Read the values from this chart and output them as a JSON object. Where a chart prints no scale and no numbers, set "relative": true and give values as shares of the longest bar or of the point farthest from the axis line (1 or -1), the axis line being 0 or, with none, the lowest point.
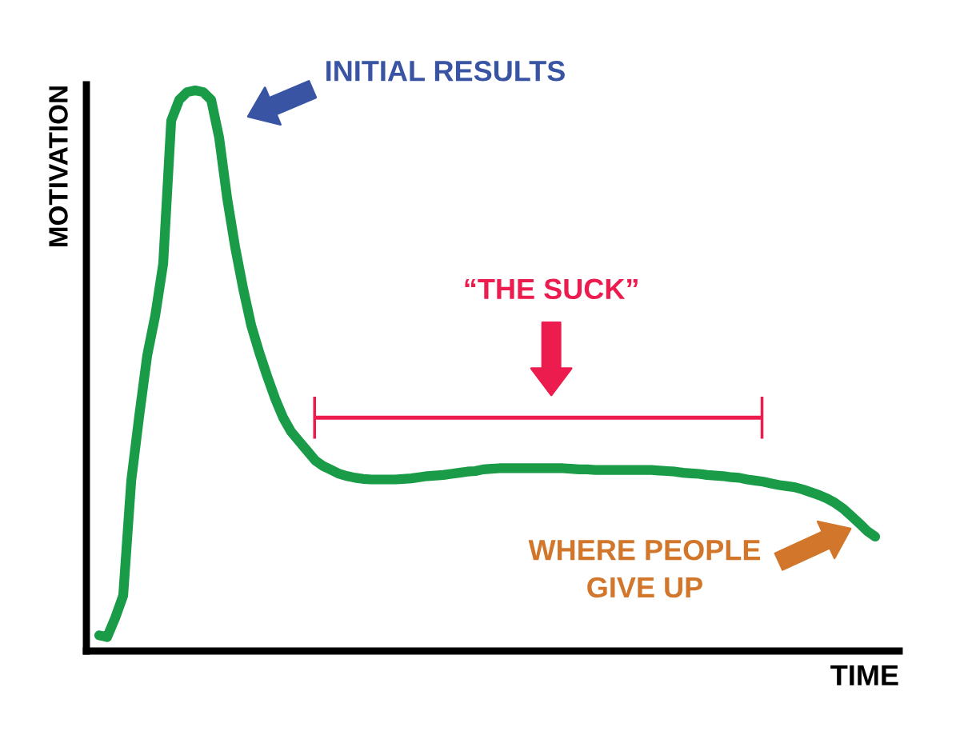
{
  "chart_data": {
    "type": "line",
    "relative": true,
    "xlabel": "TIME",
    "ylabel": "MOTIVATION",
    "tick_labels": false,
    "categories": [
      null,
      null,
      null,
      null,
      null,
      null,
      null,
      null,
      null,
      null,
      null,
      null,
      null,
      null,
      null,
      null,
      null,
      null,
      null,
      null,
      null,
      null,
      null,
      null,
      null,
      null,
      null,
      null,
      null,
      null,
      null,
      null,
      null,
      null,
      null,
      null,
      null,
      null,
      null,
      null,
      null,
      null,
      null,
      null,
      null,
      null,
      null,
      null,
      null,
      null,
      null,
      null,
      null,
      null,
      null,
      null,
      null,
      null,
      null,
      null,
      null,
      null,
      null,
      null,
      null,
      null,
      null,
      null,
      null,
      null,
      null,
      null,
      null,
      null,
      null,
      null,
      null,
      null,
      null,
      null,
      null,
      null,
      null,
      null,
      null,
      null,
      null,
      null,
      null,
      null,
      null,
      null,
      null,
      null,
      null,
      null,
      null,
      null
    ],
    "series": [
      {
        "color": "#1a9b48",
        "values": [
          0.028,
          0.025,
          0.059,
          0.099,
          0.303,
          0.419,
          0.527,
          0.598,
          0.691,
          0.946,
          0.983,
          0.997,
          1.0,
          0.997,
          0.983,
          0.915,
          0.807,
          0.72,
          0.646,
          0.581,
          0.533,
          0.49,
          0.45,
          0.416,
          0.391,
          0.374,
          0.357,
          0.34,
          0.33,
          0.323,
          0.316,
          0.312,
          0.309,
          0.307,
          0.306,
          0.306,
          0.306,
          0.306,
          0.307,
          0.308,
          0.31,
          0.312,
          0.313,
          0.314,
          0.316,
          0.318,
          0.32,
          0.321,
          0.324,
          0.325,
          0.326,
          0.326,
          0.326,
          0.326,
          0.326,
          0.326,
          0.326,
          0.326,
          0.326,
          0.325,
          0.324,
          0.324,
          0.323,
          0.323,
          0.323,
          0.323,
          0.323,
          0.323,
          0.323,
          0.323,
          0.322,
          0.321,
          0.32,
          0.318,
          0.317,
          0.316,
          0.314,
          0.313,
          0.312,
          0.31,
          0.309,
          0.306,
          0.304,
          0.302,
          0.299,
          0.296,
          0.294,
          0.292,
          0.288,
          0.283,
          0.278,
          0.272,
          0.264,
          0.254,
          0.241,
          0.228,
          0.214,
          0.204
        ]
      }
    ],
    "annotations": [
      "INITIAL RESULTS",
      "“THE SUCK”",
      "WHERE PEOPLE\nGIVE UP"
    ]
  }
}
